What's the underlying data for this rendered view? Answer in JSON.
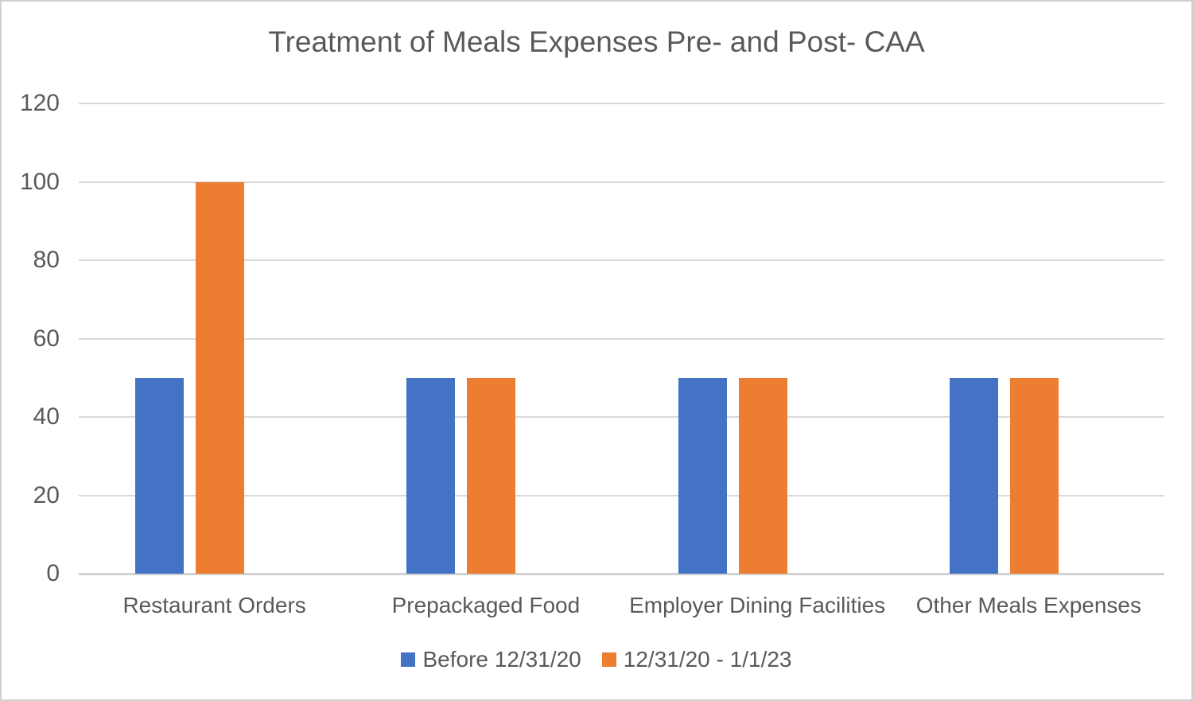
{
  "chart_data": {
    "type": "bar",
    "title": "Treatment of Meals Expenses Pre- and Post- CAA",
    "categories": [
      "Restaurant Orders",
      "Prepackaged Food",
      "Employer Dining Facilities",
      "Other Meals Expenses"
    ],
    "series": [
      {
        "name": "Before 12/31/20",
        "color": "#4472C4",
        "values": [
          50,
          50,
          50,
          50
        ]
      },
      {
        "name": "12/31/20 - 1/1/23",
        "color": "#ED7D31",
        "values": [
          100,
          50,
          50,
          50
        ]
      }
    ],
    "xlabel": "",
    "ylabel": "",
    "ylim": [
      0,
      120
    ],
    "yticks": [
      0,
      20,
      40,
      60,
      80,
      100,
      120
    ],
    "grid": true,
    "legend_position": "bottom",
    "text_color": "#595959",
    "gridline_color": "#D9D9D9"
  }
}
